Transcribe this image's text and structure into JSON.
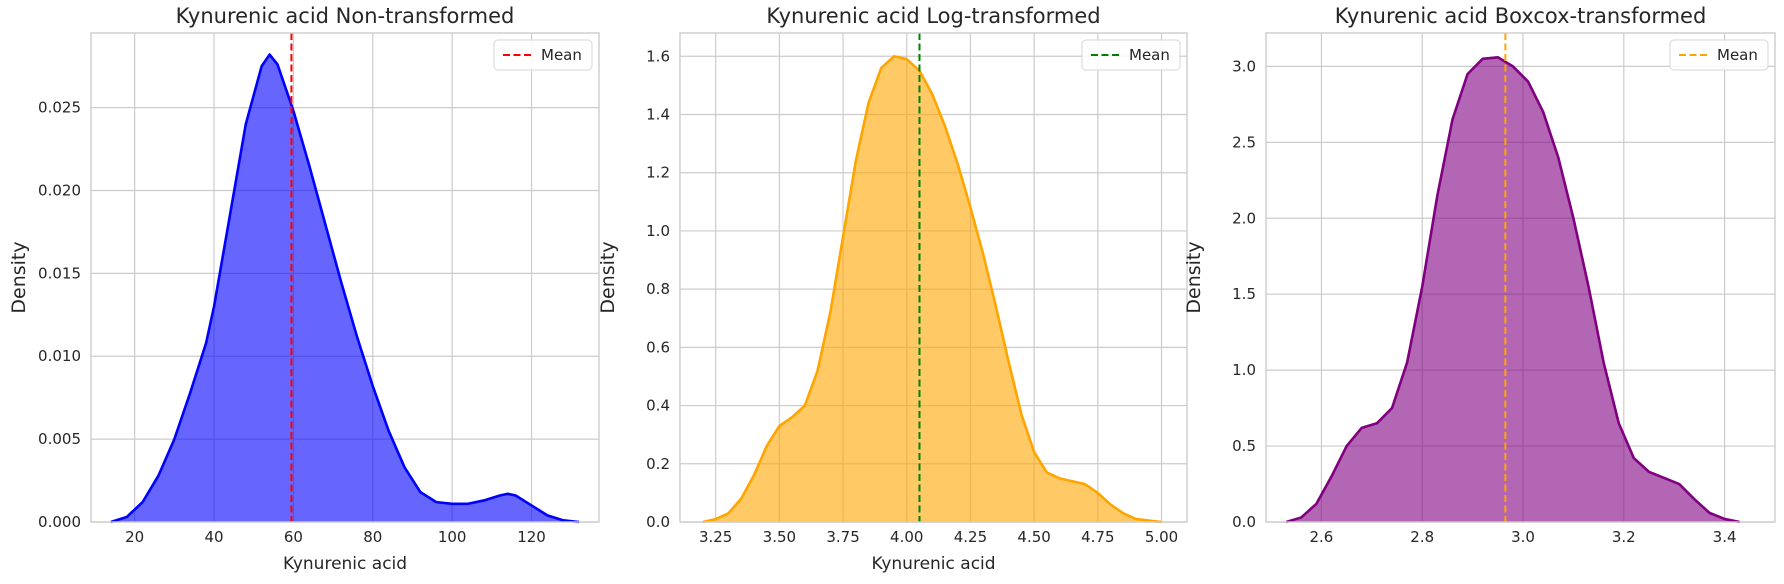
{
  "chart_data": [
    {
      "type": "area",
      "title": "Kynurenic acid Non-transformed",
      "xlabel": "Kynurenic acid",
      "ylabel": "Density",
      "xlim": [
        9,
        137
      ],
      "ylim": [
        0,
        0.0295
      ],
      "xticks": [
        20,
        40,
        60,
        80,
        100,
        120
      ],
      "yticks": [
        0.0,
        0.005,
        0.01,
        0.015,
        0.02,
        0.025
      ],
      "ytick_decimals": 3,
      "xtick_decimals": 0,
      "grid": true,
      "fill_color": "#0000ff",
      "line_color": "#0000ff",
      "mean": 59.5,
      "mean_color": "#ff0000",
      "legend": "Mean",
      "legend_position": "top-right",
      "x": [
        14,
        18,
        22,
        26,
        30,
        34,
        38,
        40,
        44,
        48,
        52,
        54,
        56,
        58,
        60,
        64,
        68,
        72,
        76,
        80,
        84,
        88,
        92,
        96,
        100,
        104,
        108,
        112,
        114,
        116,
        120,
        124,
        128,
        132
      ],
      "y": [
        0.0,
        0.0003,
        0.0012,
        0.0028,
        0.005,
        0.0078,
        0.0108,
        0.013,
        0.0185,
        0.024,
        0.0275,
        0.0282,
        0.0276,
        0.0262,
        0.0248,
        0.0215,
        0.018,
        0.0145,
        0.0112,
        0.0082,
        0.0055,
        0.0033,
        0.0018,
        0.0012,
        0.0011,
        0.0011,
        0.0013,
        0.0016,
        0.0017,
        0.0016,
        0.001,
        0.0004,
        0.0001,
        0.0
      ]
    },
    {
      "type": "area",
      "title": "Kynurenic acid Log-transformed",
      "xlabel": "Kynurenic acid",
      "ylabel": "Density",
      "xlim": [
        3.11,
        5.1
      ],
      "ylim": [
        0,
        1.68
      ],
      "xticks": [
        3.25,
        3.5,
        3.75,
        4.0,
        4.25,
        4.5,
        4.75,
        5.0
      ],
      "yticks": [
        0.0,
        0.2,
        0.4,
        0.6,
        0.8,
        1.0,
        1.2,
        1.4,
        1.6
      ],
      "ytick_decimals": 1,
      "xtick_decimals": 2,
      "grid": true,
      "fill_color": "#ffa500",
      "line_color": "#ffa500",
      "mean": 4.05,
      "mean_color": "#008000",
      "legend": "Mean",
      "legend_position": "top-right",
      "x": [
        3.2,
        3.25,
        3.3,
        3.35,
        3.4,
        3.45,
        3.5,
        3.55,
        3.6,
        3.65,
        3.7,
        3.75,
        3.8,
        3.85,
        3.9,
        3.95,
        4.0,
        4.05,
        4.1,
        4.15,
        4.2,
        4.25,
        4.3,
        4.35,
        4.4,
        4.45,
        4.5,
        4.55,
        4.6,
        4.65,
        4.7,
        4.75,
        4.8,
        4.85,
        4.9,
        4.95,
        5.0
      ],
      "y": [
        0.0,
        0.01,
        0.03,
        0.08,
        0.16,
        0.26,
        0.33,
        0.36,
        0.4,
        0.52,
        0.72,
        0.98,
        1.24,
        1.44,
        1.56,
        1.6,
        1.59,
        1.55,
        1.47,
        1.36,
        1.23,
        1.08,
        0.92,
        0.74,
        0.55,
        0.37,
        0.24,
        0.17,
        0.15,
        0.14,
        0.13,
        0.1,
        0.06,
        0.03,
        0.01,
        0.005,
        0.0
      ]
    },
    {
      "type": "area",
      "title": "Kynurenic acid Boxcox-transformed",
      "xlabel": "",
      "ylabel": "Density",
      "xlim": [
        2.49,
        3.5
      ],
      "ylim": [
        0,
        3.22
      ],
      "xticks": [
        2.6,
        2.8,
        3.0,
        3.2,
        3.4
      ],
      "yticks": [
        0.0,
        0.5,
        1.0,
        1.5,
        2.0,
        2.5,
        3.0
      ],
      "ytick_decimals": 1,
      "xtick_decimals": 1,
      "grid": true,
      "fill_color": "#800080",
      "line_color": "#800080",
      "mean": 2.965,
      "mean_color": "#ffa500",
      "legend": "Mean",
      "legend_position": "top-right",
      "x": [
        2.53,
        2.56,
        2.59,
        2.62,
        2.65,
        2.68,
        2.71,
        2.74,
        2.77,
        2.8,
        2.83,
        2.86,
        2.89,
        2.92,
        2.95,
        2.98,
        3.01,
        3.04,
        3.07,
        3.1,
        3.13,
        3.16,
        3.19,
        3.22,
        3.25,
        3.28,
        3.31,
        3.34,
        3.37,
        3.4,
        3.43
      ],
      "y": [
        0.0,
        0.03,
        0.12,
        0.3,
        0.5,
        0.62,
        0.65,
        0.75,
        1.05,
        1.55,
        2.15,
        2.65,
        2.95,
        3.05,
        3.06,
        3.0,
        2.9,
        2.7,
        2.4,
        2.0,
        1.55,
        1.05,
        0.65,
        0.42,
        0.33,
        0.29,
        0.25,
        0.15,
        0.06,
        0.02,
        0.0
      ]
    }
  ]
}
